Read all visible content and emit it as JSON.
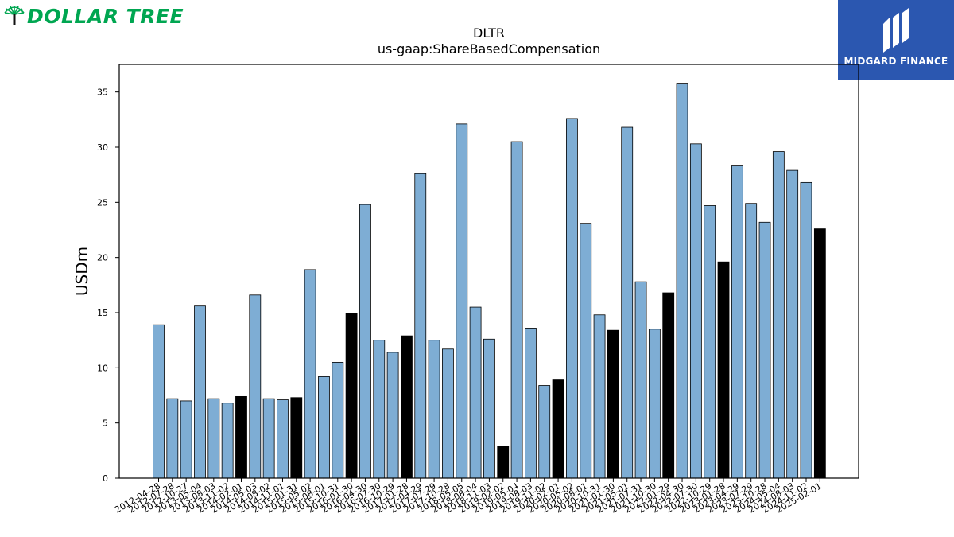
{
  "brands": {
    "left_logo": {
      "text": "DOLLAR TREE",
      "color": "#00A651",
      "icon": "tree-icon"
    },
    "right_logo": {
      "text": "MIDGARD FINANCE",
      "background": "#2B57B0",
      "icon": "midgard-mark-icon"
    }
  },
  "chart_data": {
    "type": "bar",
    "title": "DLTR",
    "subtitle": "us-gaap:ShareBasedCompensation",
    "ylabel": "USDm",
    "xlabel": "",
    "ylim": [
      0,
      37.5
    ],
    "yticks": [
      0,
      5,
      10,
      15,
      20,
      25,
      30,
      35
    ],
    "grid": false,
    "colors": {
      "quarterly": "#7EADD4",
      "annual": "#000000",
      "edge": "#000000"
    },
    "categories": [
      "2012-04-28",
      "2012-07-28",
      "2012-10-27",
      "2013-05-04",
      "2013-08-03",
      "2013-11-02",
      "2014-02-01",
      "2014-05-03",
      "2014-08-02",
      "2014-11-01",
      "2015-01-31",
      "2015-05-02",
      "2015-08-01",
      "2015-10-31",
      "2016-01-30",
      "2016-04-30",
      "2016-07-30",
      "2016-10-29",
      "2017-01-28",
      "2017-04-29",
      "2017-07-29",
      "2017-10-28",
      "2018-05-05",
      "2018-08-04",
      "2018-11-03",
      "2019-02-02",
      "2019-05-04",
      "2019-08-03",
      "2019-11-02",
      "2020-02-01",
      "2020-05-02",
      "2020-08-01",
      "2020-10-31",
      "2021-01-30",
      "2021-05-01",
      "2021-07-31",
      "2021-10-30",
      "2022-01-29",
      "2022-04-30",
      "2022-07-30",
      "2022-10-29",
      "2023-01-28",
      "2023-04-29",
      "2023-07-29",
      "2023-10-28",
      "2024-05-04",
      "2024-08-03",
      "2024-11-02",
      "2025-02-01"
    ],
    "values": [
      13.9,
      7.2,
      7.0,
      15.6,
      7.2,
      6.8,
      7.4,
      16.6,
      7.2,
      7.1,
      7.3,
      18.9,
      9.2,
      10.5,
      14.9,
      24.8,
      12.5,
      11.4,
      12.9,
      27.6,
      12.5,
      11.7,
      32.1,
      15.5,
      12.6,
      2.9,
      30.5,
      13.6,
      8.4,
      8.9,
      32.6,
      23.1,
      14.8,
      13.4,
      31.8,
      17.8,
      13.5,
      16.8,
      35.8,
      30.3,
      24.7,
      19.6,
      28.3,
      24.9,
      23.2,
      29.6,
      27.9,
      26.8,
      22.6
    ],
    "annual": [
      false,
      false,
      false,
      false,
      false,
      false,
      true,
      false,
      false,
      false,
      true,
      false,
      false,
      false,
      true,
      false,
      false,
      false,
      true,
      false,
      false,
      false,
      false,
      false,
      false,
      true,
      false,
      false,
      false,
      true,
      false,
      false,
      false,
      true,
      false,
      false,
      false,
      true,
      false,
      false,
      false,
      true,
      false,
      false,
      false,
      false,
      false,
      false,
      true
    ]
  }
}
